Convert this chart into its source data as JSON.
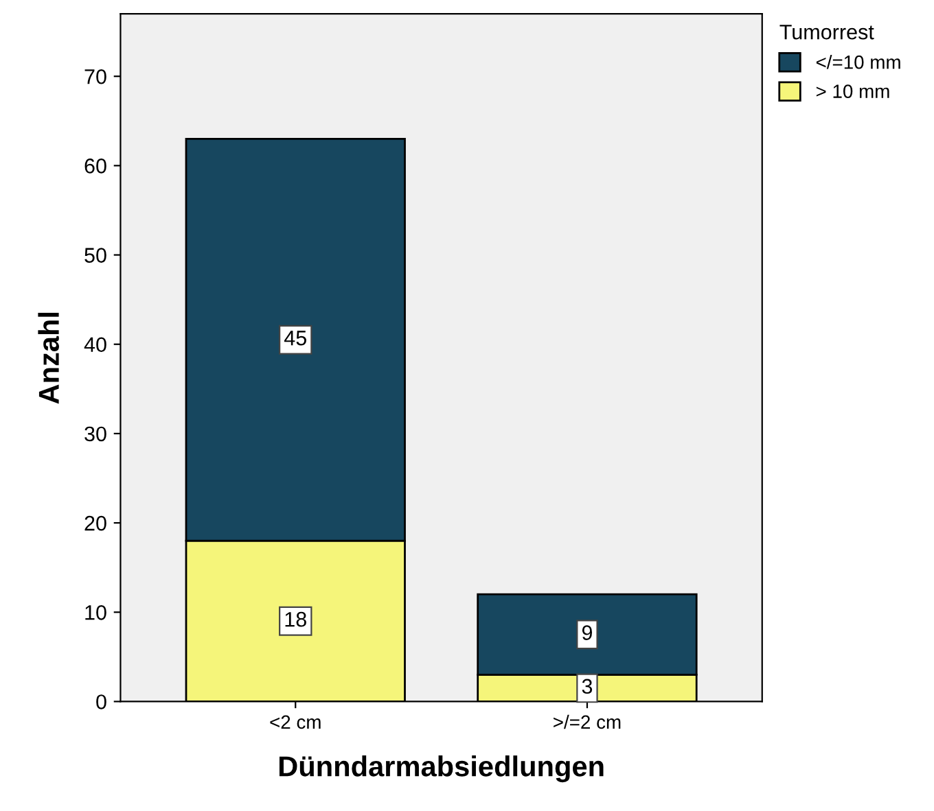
{
  "chart_data": {
    "type": "bar",
    "stacked": true,
    "xlabel": "Dünndarmabsiedlungen",
    "ylabel": "Anzahl",
    "legend_title": "Tumorrest",
    "categories": [
      "<2 cm",
      ">/=2 cm"
    ],
    "series": [
      {
        "name": "> 10 mm",
        "color": "#f5f57a",
        "values": [
          18,
          3
        ]
      },
      {
        "name": "</=10 mm",
        "color": "#17475f",
        "values": [
          45,
          9
        ]
      }
    ],
    "ylim": [
      0,
      77
    ],
    "yticks": [
      0,
      10,
      20,
      30,
      40,
      50,
      60,
      70
    ],
    "grid": false,
    "legend": "top right",
    "data_labels": true
  }
}
